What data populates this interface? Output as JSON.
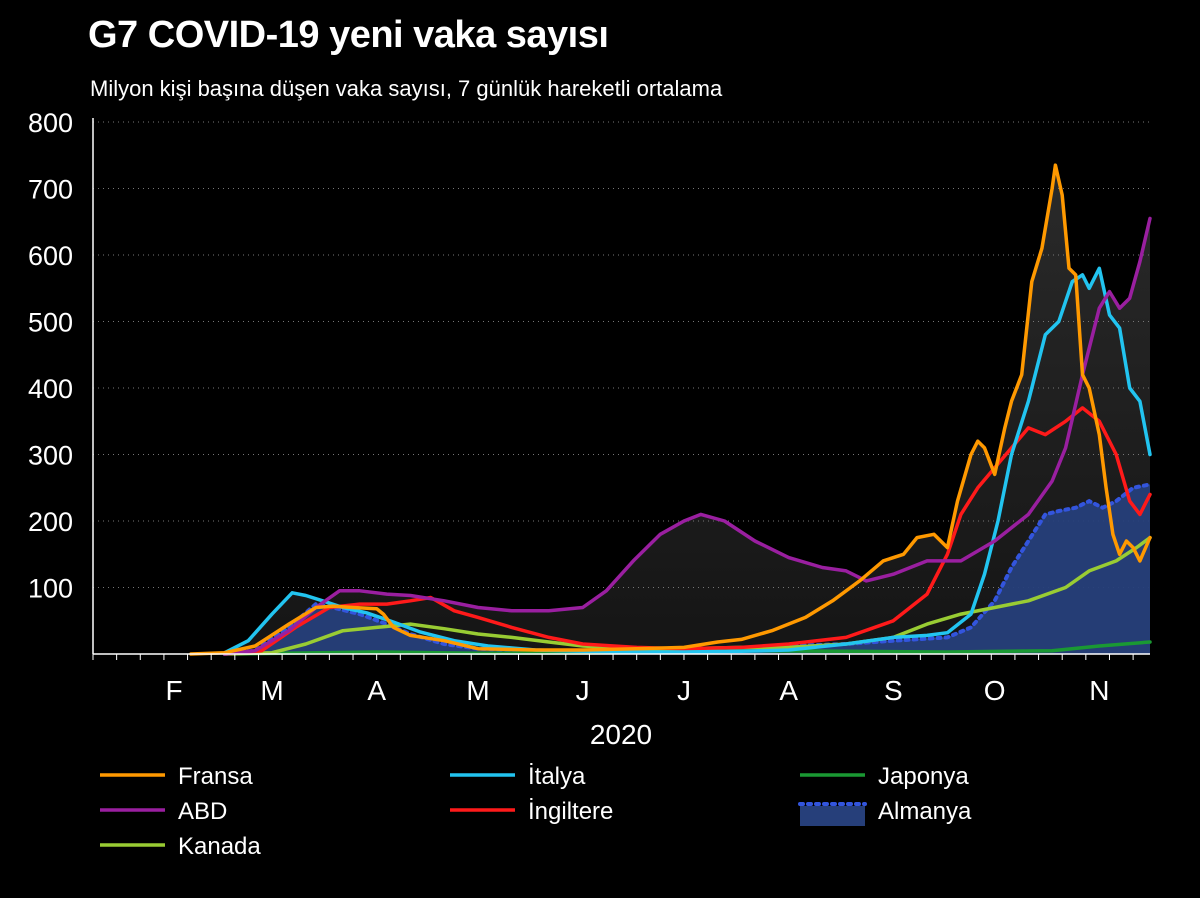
{
  "chart_data": {
    "type": "line",
    "title": "G7 COVID-19 yeni vaka sayısı",
    "subtitle": "Milyon kişi başına düşen vaka sayısı, 7 günlük hareketli ortalama",
    "xlabel": "2020",
    "ylabel": "",
    "ylim": [
      0,
      800
    ],
    "xlim": [
      "2020-01-22",
      "2020-11-30"
    ],
    "y_ticks": [
      100,
      200,
      300,
      400,
      500,
      600,
      700,
      800
    ],
    "x_ticks": [
      {
        "label": "F",
        "date": "2020-02-15"
      },
      {
        "label": "M",
        "date": "2020-03-15"
      },
      {
        "label": "A",
        "date": "2020-04-15"
      },
      {
        "label": "M",
        "date": "2020-05-15"
      },
      {
        "label": "J",
        "date": "2020-06-15"
      },
      {
        "label": "J",
        "date": "2020-07-15"
      },
      {
        "label": "A",
        "date": "2020-08-15"
      },
      {
        "label": "S",
        "date": "2020-09-15"
      },
      {
        "label": "O",
        "date": "2020-10-15"
      },
      {
        "label": "N",
        "date": "2020-11-15"
      }
    ],
    "grid": "horizontal dotted",
    "legend_position": "bottom",
    "series": [
      {
        "name": "Fransa",
        "color": "#ff9900",
        "style": "line",
        "data": [
          [
            "2020-02-20",
            0
          ],
          [
            "2020-03-01",
            2
          ],
          [
            "2020-03-10",
            12
          ],
          [
            "2020-03-20",
            45
          ],
          [
            "2020-03-28",
            70
          ],
          [
            "2020-04-02",
            72
          ],
          [
            "2020-04-08",
            70
          ],
          [
            "2020-04-15",
            68
          ],
          [
            "2020-04-17",
            60
          ],
          [
            "2020-04-20",
            40
          ],
          [
            "2020-04-25",
            28
          ],
          [
            "2020-05-05",
            20
          ],
          [
            "2020-05-15",
            8
          ],
          [
            "2020-06-01",
            6
          ],
          [
            "2020-06-15",
            6
          ],
          [
            "2020-07-01",
            8
          ],
          [
            "2020-07-15",
            10
          ],
          [
            "2020-07-25",
            18
          ],
          [
            "2020-08-01",
            22
          ],
          [
            "2020-08-10",
            35
          ],
          [
            "2020-08-20",
            55
          ],
          [
            "2020-08-28",
            80
          ],
          [
            "2020-09-05",
            110
          ],
          [
            "2020-09-12",
            140
          ],
          [
            "2020-09-18",
            150
          ],
          [
            "2020-09-22",
            175
          ],
          [
            "2020-09-27",
            180
          ],
          [
            "2020-10-01",
            160
          ],
          [
            "2020-10-04",
            230
          ],
          [
            "2020-10-08",
            300
          ],
          [
            "2020-10-10",
            320
          ],
          [
            "2020-10-12",
            310
          ],
          [
            "2020-10-15",
            270
          ],
          [
            "2020-10-18",
            340
          ],
          [
            "2020-10-20",
            380
          ],
          [
            "2020-10-23",
            420
          ],
          [
            "2020-10-26",
            560
          ],
          [
            "2020-10-29",
            610
          ],
          [
            "2020-11-01",
            700
          ],
          [
            "2020-11-02",
            735
          ],
          [
            "2020-11-04",
            690
          ],
          [
            "2020-11-06",
            580
          ],
          [
            "2020-11-08",
            570
          ],
          [
            "2020-11-10",
            420
          ],
          [
            "2020-11-12",
            400
          ],
          [
            "2020-11-15",
            330
          ],
          [
            "2020-11-17",
            250
          ],
          [
            "2020-11-19",
            180
          ],
          [
            "2020-11-21",
            150
          ],
          [
            "2020-11-23",
            170
          ],
          [
            "2020-11-25",
            160
          ],
          [
            "2020-11-27",
            140
          ],
          [
            "2020-11-30",
            175
          ]
        ]
      },
      {
        "name": "ABD",
        "color": "#9a1fa0",
        "style": "line",
        "data": [
          [
            "2020-03-01",
            0
          ],
          [
            "2020-03-10",
            5
          ],
          [
            "2020-03-20",
            35
          ],
          [
            "2020-03-28",
            70
          ],
          [
            "2020-04-04",
            95
          ],
          [
            "2020-04-10",
            95
          ],
          [
            "2020-04-18",
            90
          ],
          [
            "2020-04-25",
            88
          ],
          [
            "2020-05-05",
            80
          ],
          [
            "2020-05-15",
            70
          ],
          [
            "2020-05-25",
            65
          ],
          [
            "2020-06-05",
            65
          ],
          [
            "2020-06-15",
            70
          ],
          [
            "2020-06-22",
            95
          ],
          [
            "2020-06-30",
            140
          ],
          [
            "2020-07-08",
            180
          ],
          [
            "2020-07-15",
            200
          ],
          [
            "2020-07-20",
            210
          ],
          [
            "2020-07-27",
            200
          ],
          [
            "2020-08-05",
            170
          ],
          [
            "2020-08-15",
            145
          ],
          [
            "2020-08-25",
            130
          ],
          [
            "2020-09-01",
            125
          ],
          [
            "2020-09-07",
            110
          ],
          [
            "2020-09-15",
            120
          ],
          [
            "2020-09-25",
            140
          ],
          [
            "2020-10-05",
            140
          ],
          [
            "2020-10-15",
            170
          ],
          [
            "2020-10-25",
            210
          ],
          [
            "2020-11-01",
            260
          ],
          [
            "2020-11-05",
            310
          ],
          [
            "2020-11-10",
            420
          ],
          [
            "2020-11-15",
            520
          ],
          [
            "2020-11-18",
            545
          ],
          [
            "2020-11-21",
            520
          ],
          [
            "2020-11-24",
            535
          ],
          [
            "2020-11-27",
            590
          ],
          [
            "2020-11-30",
            655
          ]
        ]
      },
      {
        "name": "Kanada",
        "color": "#99cc33",
        "style": "line",
        "data": [
          [
            "2020-03-01",
            0
          ],
          [
            "2020-03-15",
            2
          ],
          [
            "2020-03-25",
            15
          ],
          [
            "2020-04-05",
            35
          ],
          [
            "2020-04-15",
            40
          ],
          [
            "2020-04-25",
            45
          ],
          [
            "2020-05-05",
            38
          ],
          [
            "2020-05-15",
            30
          ],
          [
            "2020-05-25",
            25
          ],
          [
            "2020-06-05",
            18
          ],
          [
            "2020-06-15",
            12
          ],
          [
            "2020-07-01",
            8
          ],
          [
            "2020-07-15",
            8
          ],
          [
            "2020-08-01",
            10
          ],
          [
            "2020-08-15",
            10
          ],
          [
            "2020-09-01",
            15
          ],
          [
            "2020-09-15",
            25
          ],
          [
            "2020-09-25",
            45
          ],
          [
            "2020-10-05",
            60
          ],
          [
            "2020-10-15",
            70
          ],
          [
            "2020-10-25",
            80
          ],
          [
            "2020-11-05",
            100
          ],
          [
            "2020-11-12",
            125
          ],
          [
            "2020-11-20",
            140
          ],
          [
            "2020-11-26",
            160
          ],
          [
            "2020-11-30",
            175
          ]
        ]
      },
      {
        "name": "İtalya",
        "color": "#22c4f0",
        "style": "line",
        "data": [
          [
            "2020-03-01",
            2
          ],
          [
            "2020-03-08",
            20
          ],
          [
            "2020-03-15",
            60
          ],
          [
            "2020-03-21",
            92
          ],
          [
            "2020-03-25",
            88
          ],
          [
            "2020-03-30",
            80
          ],
          [
            "2020-04-05",
            70
          ],
          [
            "2020-04-12",
            62
          ],
          [
            "2020-04-20",
            48
          ],
          [
            "2020-04-28",
            33
          ],
          [
            "2020-05-08",
            20
          ],
          [
            "2020-05-18",
            12
          ],
          [
            "2020-06-01",
            6
          ],
          [
            "2020-06-15",
            4
          ],
          [
            "2020-07-01",
            3
          ],
          [
            "2020-07-15",
            3
          ],
          [
            "2020-08-01",
            4
          ],
          [
            "2020-08-15",
            6
          ],
          [
            "2020-09-01",
            15
          ],
          [
            "2020-09-15",
            25
          ],
          [
            "2020-09-25",
            28
          ],
          [
            "2020-10-01",
            32
          ],
          [
            "2020-10-08",
            60
          ],
          [
            "2020-10-12",
            120
          ],
          [
            "2020-10-16",
            200
          ],
          [
            "2020-10-20",
            300
          ],
          [
            "2020-10-25",
            380
          ],
          [
            "2020-10-30",
            480
          ],
          [
            "2020-11-03",
            500
          ],
          [
            "2020-11-07",
            560
          ],
          [
            "2020-11-10",
            570
          ],
          [
            "2020-11-12",
            550
          ],
          [
            "2020-11-15",
            580
          ],
          [
            "2020-11-18",
            510
          ],
          [
            "2020-11-21",
            490
          ],
          [
            "2020-11-24",
            400
          ],
          [
            "2020-11-27",
            380
          ],
          [
            "2020-11-30",
            300
          ]
        ]
      },
      {
        "name": "İngiltere",
        "color": "#ff1a1a",
        "style": "line",
        "data": [
          [
            "2020-03-01",
            0
          ],
          [
            "2020-03-12",
            5
          ],
          [
            "2020-03-22",
            40
          ],
          [
            "2020-04-01",
            70
          ],
          [
            "2020-04-10",
            75
          ],
          [
            "2020-04-18",
            75
          ],
          [
            "2020-04-25",
            80
          ],
          [
            "2020-05-01",
            85
          ],
          [
            "2020-05-08",
            65
          ],
          [
            "2020-05-15",
            55
          ],
          [
            "2020-05-25",
            40
          ],
          [
            "2020-06-05",
            25
          ],
          [
            "2020-06-15",
            15
          ],
          [
            "2020-07-01",
            10
          ],
          [
            "2020-07-15",
            8
          ],
          [
            "2020-08-01",
            10
          ],
          [
            "2020-08-15",
            15
          ],
          [
            "2020-09-01",
            25
          ],
          [
            "2020-09-15",
            50
          ],
          [
            "2020-09-25",
            90
          ],
          [
            "2020-10-01",
            150
          ],
          [
            "2020-10-05",
            210
          ],
          [
            "2020-10-10",
            250
          ],
          [
            "2020-10-15",
            280
          ],
          [
            "2020-10-20",
            310
          ],
          [
            "2020-10-25",
            340
          ],
          [
            "2020-10-30",
            330
          ],
          [
            "2020-11-05",
            350
          ],
          [
            "2020-11-10",
            370
          ],
          [
            "2020-11-15",
            350
          ],
          [
            "2020-11-20",
            300
          ],
          [
            "2020-11-24",
            230
          ],
          [
            "2020-11-27",
            210
          ],
          [
            "2020-11-30",
            240
          ]
        ]
      },
      {
        "name": "Japonya",
        "color": "#1a9933",
        "style": "line",
        "data": [
          [
            "2020-03-01",
            0
          ],
          [
            "2020-04-15",
            3
          ],
          [
            "2020-05-15",
            1
          ],
          [
            "2020-07-01",
            2
          ],
          [
            "2020-08-01",
            5
          ],
          [
            "2020-09-01",
            4
          ],
          [
            "2020-10-01",
            3
          ],
          [
            "2020-11-01",
            5
          ],
          [
            "2020-11-15",
            12
          ],
          [
            "2020-11-30",
            18
          ]
        ]
      },
      {
        "name": "Almanya",
        "color": "#3355dd",
        "fill": "#263f7a",
        "style": "area",
        "data": [
          [
            "2020-03-01",
            0
          ],
          [
            "2020-03-10",
            5
          ],
          [
            "2020-03-20",
            40
          ],
          [
            "2020-03-28",
            75
          ],
          [
            "2020-04-02",
            70
          ],
          [
            "2020-04-10",
            60
          ],
          [
            "2020-04-18",
            45
          ],
          [
            "2020-04-25",
            30
          ],
          [
            "2020-05-05",
            15
          ],
          [
            "2020-05-15",
            8
          ],
          [
            "2020-06-01",
            5
          ],
          [
            "2020-07-01",
            5
          ],
          [
            "2020-08-01",
            8
          ],
          [
            "2020-08-15",
            12
          ],
          [
            "2020-09-01",
            15
          ],
          [
            "2020-09-15",
            20
          ],
          [
            "2020-10-01",
            25
          ],
          [
            "2020-10-08",
            40
          ],
          [
            "2020-10-15",
            80
          ],
          [
            "2020-10-20",
            130
          ],
          [
            "2020-10-25",
            170
          ],
          [
            "2020-10-30",
            210
          ],
          [
            "2020-11-03",
            215
          ],
          [
            "2020-11-08",
            220
          ],
          [
            "2020-11-12",
            230
          ],
          [
            "2020-11-16",
            220
          ],
          [
            "2020-11-20",
            230
          ],
          [
            "2020-11-25",
            250
          ],
          [
            "2020-11-30",
            255
          ]
        ]
      }
    ],
    "legend_order": [
      "Fransa",
      "İtalya",
      "Japonya",
      "ABD",
      "İngiltere",
      "Almanya",
      "Kanada"
    ]
  }
}
